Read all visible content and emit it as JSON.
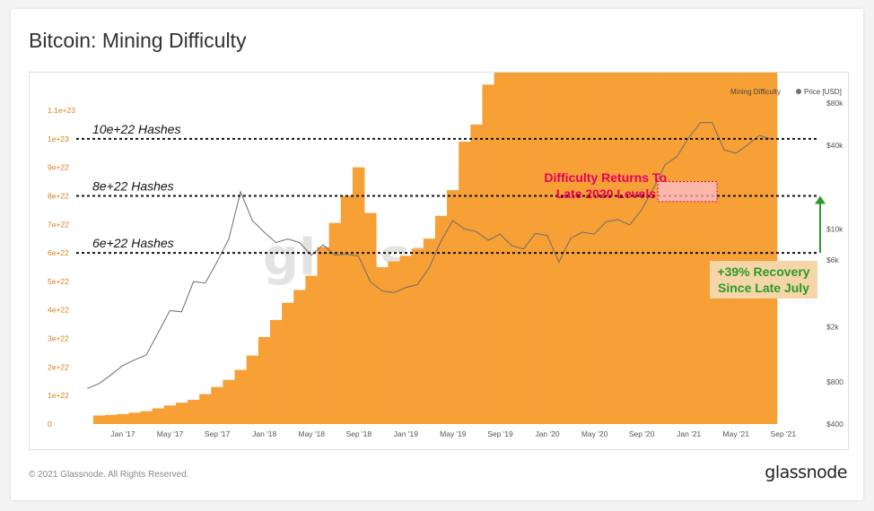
{
  "title": "Bitcoin: Mining Difficulty",
  "copyright": "© 2021 Glassnode. All Rights Reserved.",
  "brand": "glassnode",
  "watermark": "glassnode",
  "colors": {
    "difficulty": "#f7a035",
    "price": "#6e6e6e",
    "annotation_pink": "#e8005e",
    "annotation_green": "#2a9a2a",
    "green_box_bg": "#f6d6a8",
    "left_axis_text": "#d8801e"
  },
  "chart_data": {
    "type": "bar",
    "legend": {
      "items": [
        "Mining Difficulty",
        "Price [USD]"
      ],
      "placement": "top-right"
    },
    "x_ticks": [
      "Jan '17",
      "May '17",
      "Sep '17",
      "Jan '18",
      "May '18",
      "Sep '18",
      "Jan '19",
      "May '19",
      "Sep '19",
      "Jan '20",
      "May '20",
      "Sep '20",
      "Jan '21",
      "May '21",
      "Sep '21"
    ],
    "y_left": {
      "ticks": [
        "0",
        "1e+22",
        "2e+22",
        "3e+22",
        "4e+22",
        "5e+22",
        "6e+22",
        "7e+22",
        "8e+22",
        "9e+22",
        "1e+23",
        "1.1e+23"
      ],
      "range": [
        0,
        1.1e+23
      ]
    },
    "y_right": {
      "ticks": [
        "$400",
        "$800",
        "$2k",
        "$6k",
        "$10k",
        "$40k",
        "$80k"
      ],
      "scale": "log"
    },
    "series": [
      {
        "name": "Mining Difficulty",
        "axis": "left",
        "unit_exponent": 22,
        "points": [
          [
            "2016-12",
            0.3
          ],
          [
            "2017-01",
            0.32
          ],
          [
            "2017-02",
            0.35
          ],
          [
            "2017-03",
            0.4
          ],
          [
            "2017-04",
            0.45
          ],
          [
            "2017-05",
            0.55
          ],
          [
            "2017-06",
            0.65
          ],
          [
            "2017-07",
            0.75
          ],
          [
            "2017-08",
            0.85
          ],
          [
            "2017-09",
            1.05
          ],
          [
            "2017-10",
            1.3
          ],
          [
            "2017-11",
            1.55
          ],
          [
            "2017-12",
            1.9
          ],
          [
            "2018-01",
            2.4
          ],
          [
            "2018-02",
            3.05
          ],
          [
            "2018-03",
            3.65
          ],
          [
            "2018-04",
            4.25
          ],
          [
            "2018-05",
            4.7
          ],
          [
            "2018-06",
            5.2
          ],
          [
            "2018-07",
            6.2
          ],
          [
            "2018-08",
            7.05
          ],
          [
            "2018-09",
            8.0
          ],
          [
            "2018-10",
            9.0
          ],
          [
            "2018-11",
            7.4
          ],
          [
            "2018-12",
            5.5
          ],
          [
            "2019-01",
            5.7
          ],
          [
            "2019-02",
            5.9
          ],
          [
            "2019-03",
            6.15
          ],
          [
            "2019-04",
            6.5
          ],
          [
            "2019-05",
            7.3
          ],
          [
            "2019-06",
            8.2
          ],
          [
            "2019-07",
            9.9
          ],
          [
            "2019-08",
            10.5
          ],
          [
            "2019-09",
            11.9
          ],
          [
            "2019-10",
            13.1
          ],
          [
            "2019-11",
            12.7
          ],
          [
            "2019-12",
            13.3
          ],
          [
            "2020-01",
            14.4
          ],
          [
            "2020-02",
            15.4
          ],
          [
            "2020-03",
            16.1
          ],
          [
            "2020-04",
            14.7
          ],
          [
            "2020-05",
            15.8
          ],
          [
            "2020-06",
            15.1
          ],
          [
            "2020-07",
            16.9
          ],
          [
            "2020-08",
            17.3
          ],
          [
            "2020-09",
            18.6
          ],
          [
            "2020-10",
            19.8
          ],
          [
            "2020-11",
            17.6
          ],
          [
            "2020-12",
            18.6
          ],
          [
            "2021-01",
            20.6
          ],
          [
            "2021-02",
            21.5
          ],
          [
            "2021-03",
            21.7
          ],
          [
            "2021-04",
            23.0
          ],
          [
            "2021-05",
            25.0
          ],
          [
            "2021-06",
            21.0
          ],
          [
            "2021-07",
            14.36
          ],
          [
            "2021-08",
            16.8
          ],
          [
            "2021-09",
            19.9
          ]
        ]
      },
      {
        "name": "Price [USD]",
        "axis": "right",
        "points": [
          [
            "2016-11",
            720
          ],
          [
            "2016-12",
            780
          ],
          [
            "2017-01",
            900
          ],
          [
            "2017-02",
            1050
          ],
          [
            "2017-03",
            1150
          ],
          [
            "2017-04",
            1250
          ],
          [
            "2017-05",
            1800
          ],
          [
            "2017-06",
            2600
          ],
          [
            "2017-07",
            2550
          ],
          [
            "2017-08",
            4200
          ],
          [
            "2017-09",
            4100
          ],
          [
            "2017-10",
            5800
          ],
          [
            "2017-11",
            8500
          ],
          [
            "2017-12",
            18500
          ],
          [
            "2018-01",
            11500
          ],
          [
            "2018-02",
            9500
          ],
          [
            "2018-03",
            8000
          ],
          [
            "2018-04",
            8500
          ],
          [
            "2018-05",
            8000
          ],
          [
            "2018-06",
            6500
          ],
          [
            "2018-07",
            7700
          ],
          [
            "2018-08",
            6500
          ],
          [
            "2018-09",
            6600
          ],
          [
            "2018-10",
            6400
          ],
          [
            "2018-11",
            4200
          ],
          [
            "2018-12",
            3600
          ],
          [
            "2019-01",
            3500
          ],
          [
            "2019-02",
            3800
          ],
          [
            "2019-03",
            4000
          ],
          [
            "2019-04",
            5300
          ],
          [
            "2019-05",
            8200
          ],
          [
            "2019-06",
            11500
          ],
          [
            "2019-07",
            10000
          ],
          [
            "2019-08",
            9600
          ],
          [
            "2019-09",
            8300
          ],
          [
            "2019-10",
            9200
          ],
          [
            "2019-11",
            7600
          ],
          [
            "2019-12",
            7200
          ],
          [
            "2020-01",
            9300
          ],
          [
            "2020-02",
            9000
          ],
          [
            "2020-03",
            5800
          ],
          [
            "2020-04",
            8600
          ],
          [
            "2020-05",
            9500
          ],
          [
            "2020-06",
            9200
          ],
          [
            "2020-07",
            11300
          ],
          [
            "2020-08",
            11700
          ],
          [
            "2020-09",
            10700
          ],
          [
            "2020-10",
            13700
          ],
          [
            "2020-11",
            19500
          ],
          [
            "2020-12",
            29000
          ],
          [
            "2021-01",
            33000
          ],
          [
            "2021-02",
            45000
          ],
          [
            "2021-03",
            58000
          ],
          [
            "2021-04",
            58000
          ],
          [
            "2021-05",
            37000
          ],
          [
            "2021-06",
            35000
          ],
          [
            "2021-07",
            40000
          ],
          [
            "2021-08",
            47000
          ],
          [
            "2021-09",
            44000
          ]
        ]
      }
    ],
    "reference_lines": [
      {
        "value": 10,
        "label": "10e+22 Hashes"
      },
      {
        "value": 8,
        "label": "8e+22 Hashes"
      },
      {
        "value": 6,
        "label": "6e+22 Hashes"
      }
    ],
    "annotations": {
      "pink": [
        "Difficulty Returns To",
        "Late 2020 Levels"
      ],
      "green": [
        "+39% Recovery",
        "Since Late July"
      ]
    }
  }
}
